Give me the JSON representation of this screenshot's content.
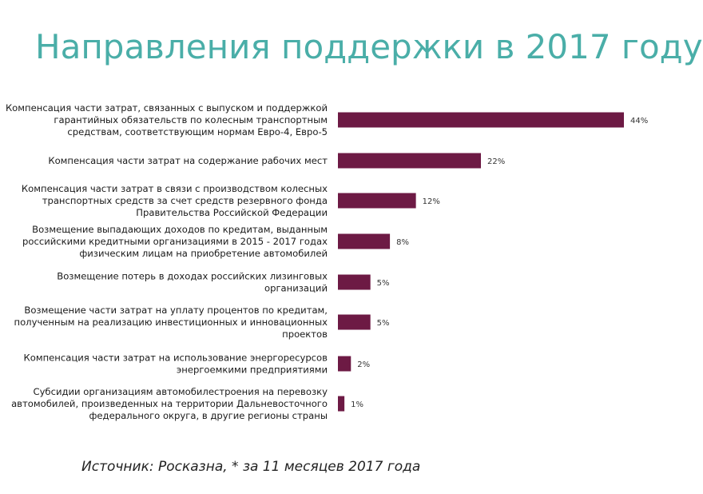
{
  "page": {
    "title": "Направления поддержки в 2017 году",
    "source": "Источник: Росказна, * за 11 месяцев 2017 года"
  },
  "colors": {
    "title": "#4aaea8",
    "bar": "#6d1a44"
  },
  "chart_data": {
    "type": "bar",
    "orientation": "horizontal",
    "title": "",
    "categories": [
      "Компенсация части затрат, связанных с выпуском и поддержкой гарантийных обязательств по колесным транспортным средствам, соответствующим нормам Евро-4, Евро-5",
      "Компенсация части затрат на содержание рабочих мест",
      "Компенсация части затрат в связи с производством колесных транспортных средств за счет средств резервного фонда Правительства Российской Федерации",
      "Возмещение выпадающих доходов по кредитам, выданным российскими кредитными организациями в 2015 - 2017 годах физическим лицам на приобретение автомобилей",
      "Возмещение потерь в доходах российских лизинговых организаций",
      "Возмещение части затрат на уплату процентов по кредитам, полученным на реализацию инвестиционных и инновационных проектов",
      "Компенсация части затрат на использование энергоресурсов энергоемкими предприятиями",
      "Субсидии организациям автомобилестроения на перевозку автомобилей, произведенных на территории Дальневосточного федерального округа, в другие регионы страны"
    ],
    "category_lines": [
      [
        "Компенсация части затрат, связанных с выпуском и поддержкой",
        "гарантийных обязательств по колесным транспортным",
        "средствам, соответствующим нормам Евро-4, Евро-5"
      ],
      [
        "Компенсация части затрат на содержание рабочих мест"
      ],
      [
        "Компенсация части затрат в связи с производством колесных",
        "транспортных средств за счет средств резервного фонда",
        "Правительства Российской Федерации"
      ],
      [
        "Возмещение выпадающих доходов по кредитам, выданным",
        "российскими кредитными организациями в 2015 - 2017 годах",
        "физическим лицам на приобретение автомобилей"
      ],
      [
        "Возмещение потерь в доходах российских лизинговых",
        "организаций"
      ],
      [
        "Возмещение части затрат на уплату процентов по кредитам,",
        "полученным на реализацию инвестиционных и инновационных",
        "проектов"
      ],
      [
        "Компенсация части затрат на использование энергоресурсов",
        "энергоемкими предприятиями"
      ],
      [
        "Субсидии организациям автомобилестроения на перевозку",
        "автомобилей, произведенных на территории Дальневосточного",
        "федерального округа, в другие регионы страны"
      ]
    ],
    "values": [
      44,
      22,
      12,
      8,
      5,
      5,
      2,
      1
    ],
    "value_labels": [
      "44%",
      "22%",
      "12%",
      "8%",
      "5%",
      "5%",
      "2%",
      "1%"
    ],
    "xlim": [
      0,
      44
    ],
    "grid": false,
    "legend": "none"
  }
}
